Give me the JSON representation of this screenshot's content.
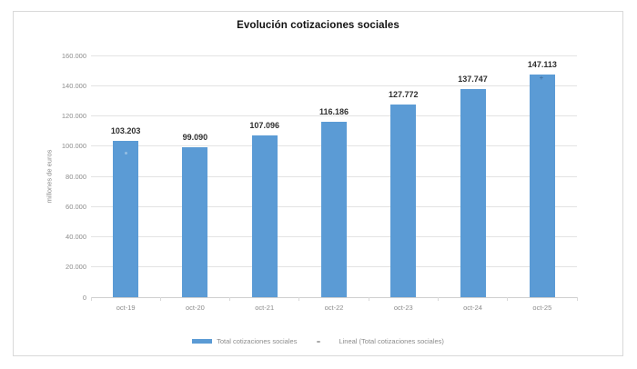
{
  "chart_data": {
    "type": "bar",
    "title": "Evolución cotizaciones sociales",
    "ylabel": "millones de euros",
    "categories": [
      "oct-19",
      "oct-20",
      "oct-21",
      "oct-22",
      "oct-23",
      "oct-24",
      "oct-25"
    ],
    "values": [
      103203,
      99090,
      107096,
      116186,
      127772,
      137747,
      147113
    ],
    "value_labels": [
      "103.203",
      "99.090",
      "107.096",
      "116.186",
      "127.772",
      "137.747",
      "147.113"
    ],
    "ylim": [
      0,
      160000
    ],
    "ytick_interval": 20000,
    "ytick_labels": [
      "0",
      "20.000",
      "40.000",
      "60.000",
      "80.000",
      "100.000",
      "120.000",
      "140.000",
      "160.000"
    ],
    "grid": true,
    "legend_position": "bottom",
    "legend": [
      {
        "label": "Total cotizaciones sociales",
        "type": "bar-series"
      },
      {
        "label": "Lineal (Total cotizaciones sociales)",
        "type": "linear-trendline"
      }
    ],
    "colors": {
      "bar": "#5B9BD5",
      "gridline": "#e3e3e3",
      "axis_line": "#cfcfcf",
      "tick": "#d9d9d9",
      "axis_text": "#8c8c8c",
      "value_label": "#2f2f2f",
      "title": "#121212",
      "frame_border": "#d9d9d9"
    }
  }
}
